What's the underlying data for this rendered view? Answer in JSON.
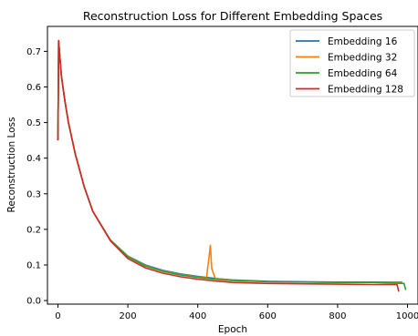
{
  "chart_data": {
    "type": "line",
    "title": "Reconstruction Loss for Different Embedding Spaces",
    "xlabel": "Epoch",
    "ylabel": "Reconstruction Loss",
    "xlim": [
      -30,
      1030
    ],
    "ylim": [
      -0.01,
      0.77
    ],
    "xticks": [
      0,
      200,
      400,
      600,
      800,
      1000
    ],
    "yticks": [
      0.0,
      0.1,
      0.2,
      0.3,
      0.4,
      0.5,
      0.6,
      0.7
    ],
    "grid": false,
    "legend_position": "upper right",
    "series": [
      {
        "name": "Embedding 16",
        "color": "#1f77b4",
        "x": [
          0,
          2,
          5,
          10,
          20,
          30,
          50,
          75,
          100,
          150,
          200,
          250,
          300,
          350,
          400,
          450,
          500,
          600,
          700,
          800,
          900,
          985
        ],
        "y": [
          0.45,
          0.73,
          0.69,
          0.63,
          0.56,
          0.5,
          0.41,
          0.32,
          0.25,
          0.17,
          0.125,
          0.1,
          0.085,
          0.075,
          0.068,
          0.062,
          0.058,
          0.054,
          0.053,
          0.052,
          0.052,
          0.052
        ]
      },
      {
        "name": "Embedding 32",
        "color": "#ff7f0e",
        "x": [
          0,
          2,
          5,
          10,
          20,
          30,
          50,
          75,
          100,
          150,
          200,
          250,
          300,
          350,
          400,
          425,
          432,
          436,
          440,
          450,
          500,
          600,
          700,
          800,
          900,
          985
        ],
        "y": [
          0.45,
          0.73,
          0.69,
          0.63,
          0.56,
          0.5,
          0.41,
          0.32,
          0.25,
          0.17,
          0.124,
          0.098,
          0.083,
          0.073,
          0.066,
          0.064,
          0.12,
          0.155,
          0.09,
          0.062,
          0.057,
          0.053,
          0.052,
          0.051,
          0.051,
          0.051
        ]
      },
      {
        "name": "Embedding 64",
        "color": "#2ca02c",
        "x": [
          0,
          2,
          5,
          10,
          20,
          30,
          50,
          75,
          100,
          150,
          200,
          250,
          300,
          350,
          400,
          450,
          500,
          600,
          700,
          800,
          900,
          990,
          995
        ],
        "y": [
          0.45,
          0.73,
          0.69,
          0.63,
          0.56,
          0.5,
          0.41,
          0.32,
          0.25,
          0.17,
          0.123,
          0.097,
          0.082,
          0.072,
          0.065,
          0.06,
          0.056,
          0.053,
          0.052,
          0.051,
          0.051,
          0.048,
          0.03
        ]
      },
      {
        "name": "Embedding 128",
        "color": "#d62728",
        "x": [
          0,
          2,
          5,
          10,
          20,
          30,
          50,
          75,
          100,
          150,
          200,
          250,
          300,
          350,
          400,
          450,
          500,
          600,
          700,
          800,
          900,
          970,
          975
        ],
        "y": [
          0.45,
          0.73,
          0.69,
          0.63,
          0.56,
          0.5,
          0.41,
          0.32,
          0.25,
          0.168,
          0.118,
          0.092,
          0.077,
          0.067,
          0.06,
          0.055,
          0.051,
          0.048,
          0.047,
          0.046,
          0.045,
          0.045,
          0.025
        ]
      }
    ]
  }
}
